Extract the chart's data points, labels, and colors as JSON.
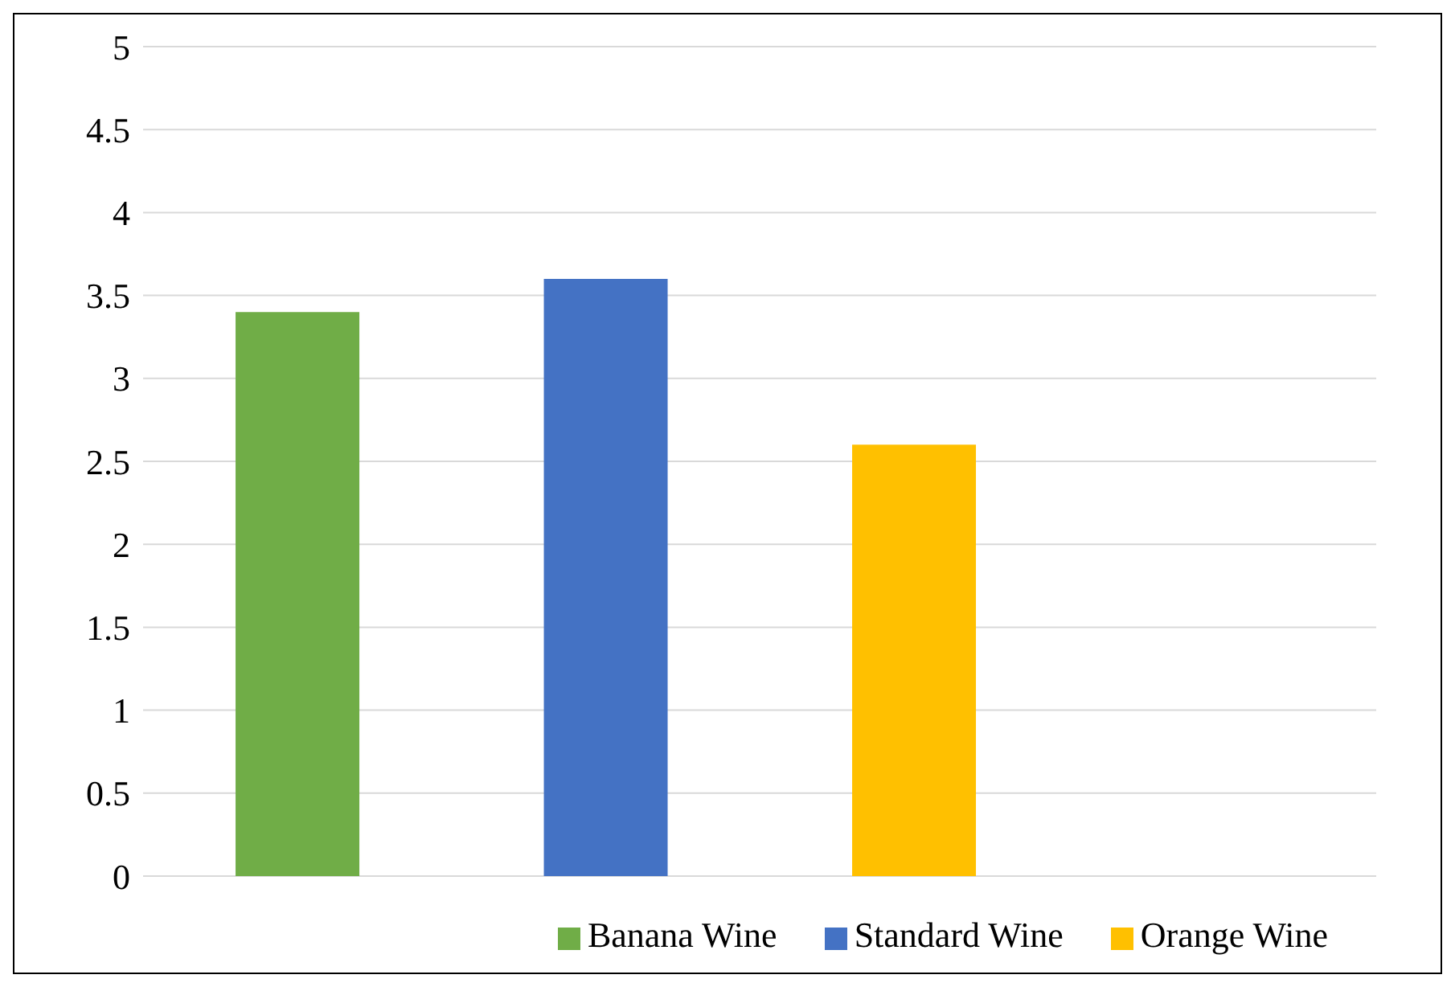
{
  "chart_data": {
    "type": "bar",
    "stacked": true,
    "categories": [
      null,
      null,
      null,
      null
    ],
    "series": [
      {
        "name": "Banana Wine",
        "color": "#70ad47",
        "values": [
          3.4,
          null,
          null,
          null
        ]
      },
      {
        "name": "Standard Wine",
        "color": "#4472c4",
        "values": [
          null,
          3.6,
          null,
          null
        ]
      },
      {
        "name": "Orange Wine",
        "color": "#ffc000",
        "values": [
          null,
          null,
          2.6,
          null
        ]
      }
    ],
    "ylim": [
      0,
      5
    ],
    "yticks": [
      0,
      0.5,
      1,
      1.5,
      2,
      2.5,
      3,
      3.5,
      4,
      4.5,
      5
    ],
    "grid": "y",
    "legend": "bottom right",
    "tick_labels": "y"
  }
}
